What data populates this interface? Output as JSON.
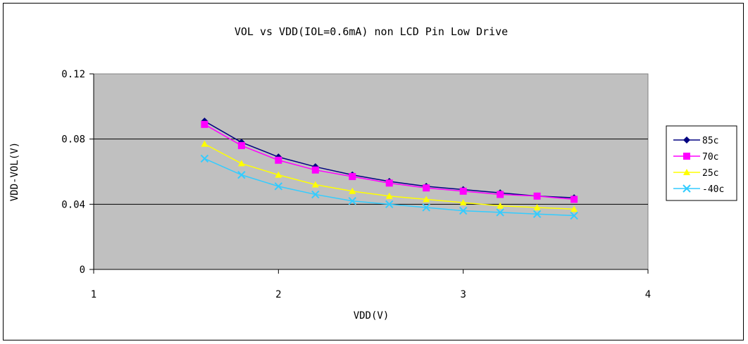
{
  "chart_data": {
    "type": "line",
    "title": "VOL vs VDD(IOL=0.6mA) non LCD Pin Low Drive",
    "xlabel": "VDD(V)",
    "ylabel": "VDD-VOL(V)",
    "xlim": [
      1,
      4
    ],
    "ylim": [
      0,
      0.12
    ],
    "xticks": [
      "1",
      "2",
      "3",
      "4"
    ],
    "yticks": [
      "0",
      "0.04",
      "0.08",
      "0.12"
    ],
    "grid": "horizontal major gridlines",
    "legend_position": "right",
    "plot_background": "#c0c0c0",
    "x": [
      1.6,
      1.8,
      2.0,
      2.2,
      2.4,
      2.6,
      2.8,
      3.0,
      3.2,
      3.4,
      3.6
    ],
    "series": [
      {
        "name": "85c",
        "color": "#000080",
        "marker": "diamond",
        "values": [
          0.091,
          0.078,
          0.069,
          0.063,
          0.058,
          0.054,
          0.051,
          0.049,
          0.047,
          0.045,
          0.044
        ]
      },
      {
        "name": "70c",
        "color": "#ff00ff",
        "marker": "square",
        "values": [
          0.089,
          0.076,
          0.067,
          0.061,
          0.057,
          0.053,
          0.05,
          0.048,
          0.046,
          0.045,
          0.043
        ]
      },
      {
        "name": "25c",
        "color": "#ffff00",
        "marker": "triangle",
        "values": [
          0.077,
          0.065,
          0.058,
          0.052,
          0.048,
          0.045,
          0.043,
          0.041,
          0.039,
          0.038,
          0.037
        ]
      },
      {
        "name": "-40c",
        "color": "#33ccff",
        "marker": "x",
        "values": [
          0.068,
          0.058,
          0.051,
          0.046,
          0.042,
          0.04,
          0.038,
          0.036,
          0.035,
          0.034,
          0.033
        ]
      }
    ]
  }
}
